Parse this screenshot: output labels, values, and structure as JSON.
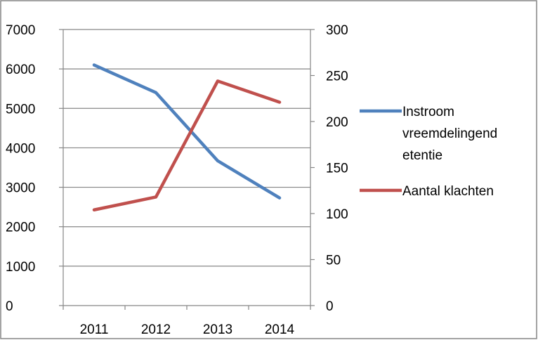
{
  "chart_data": {
    "type": "line",
    "title": "",
    "categories": [
      "2011",
      "2012",
      "2013",
      "2014"
    ],
    "y_left": {
      "ylim": [
        0,
        7000
      ],
      "ticks": [
        "0",
        "1000",
        "2000",
        "3000",
        "4000",
        "5000",
        "6000",
        "7000"
      ]
    },
    "y_right": {
      "ylim": [
        0,
        300
      ],
      "ticks": [
        "0",
        "50",
        "100",
        "150",
        "200",
        "250",
        "300"
      ]
    },
    "grid": true,
    "legend_position": "right",
    "series": [
      {
        "name": "Instroom vreemdelingendetentie",
        "legend_lines": [
          "Instroom",
          "vreemdelingend",
          "etentie"
        ],
        "axis": "left",
        "color": "#4f81bd",
        "values": [
          6100,
          5400,
          3670,
          2730
        ]
      },
      {
        "name": "Aantal klachten",
        "legend_lines": [
          "Aantal klachten"
        ],
        "axis": "right",
        "color": "#c0504d",
        "values": [
          104,
          118,
          244,
          221
        ]
      }
    ]
  }
}
